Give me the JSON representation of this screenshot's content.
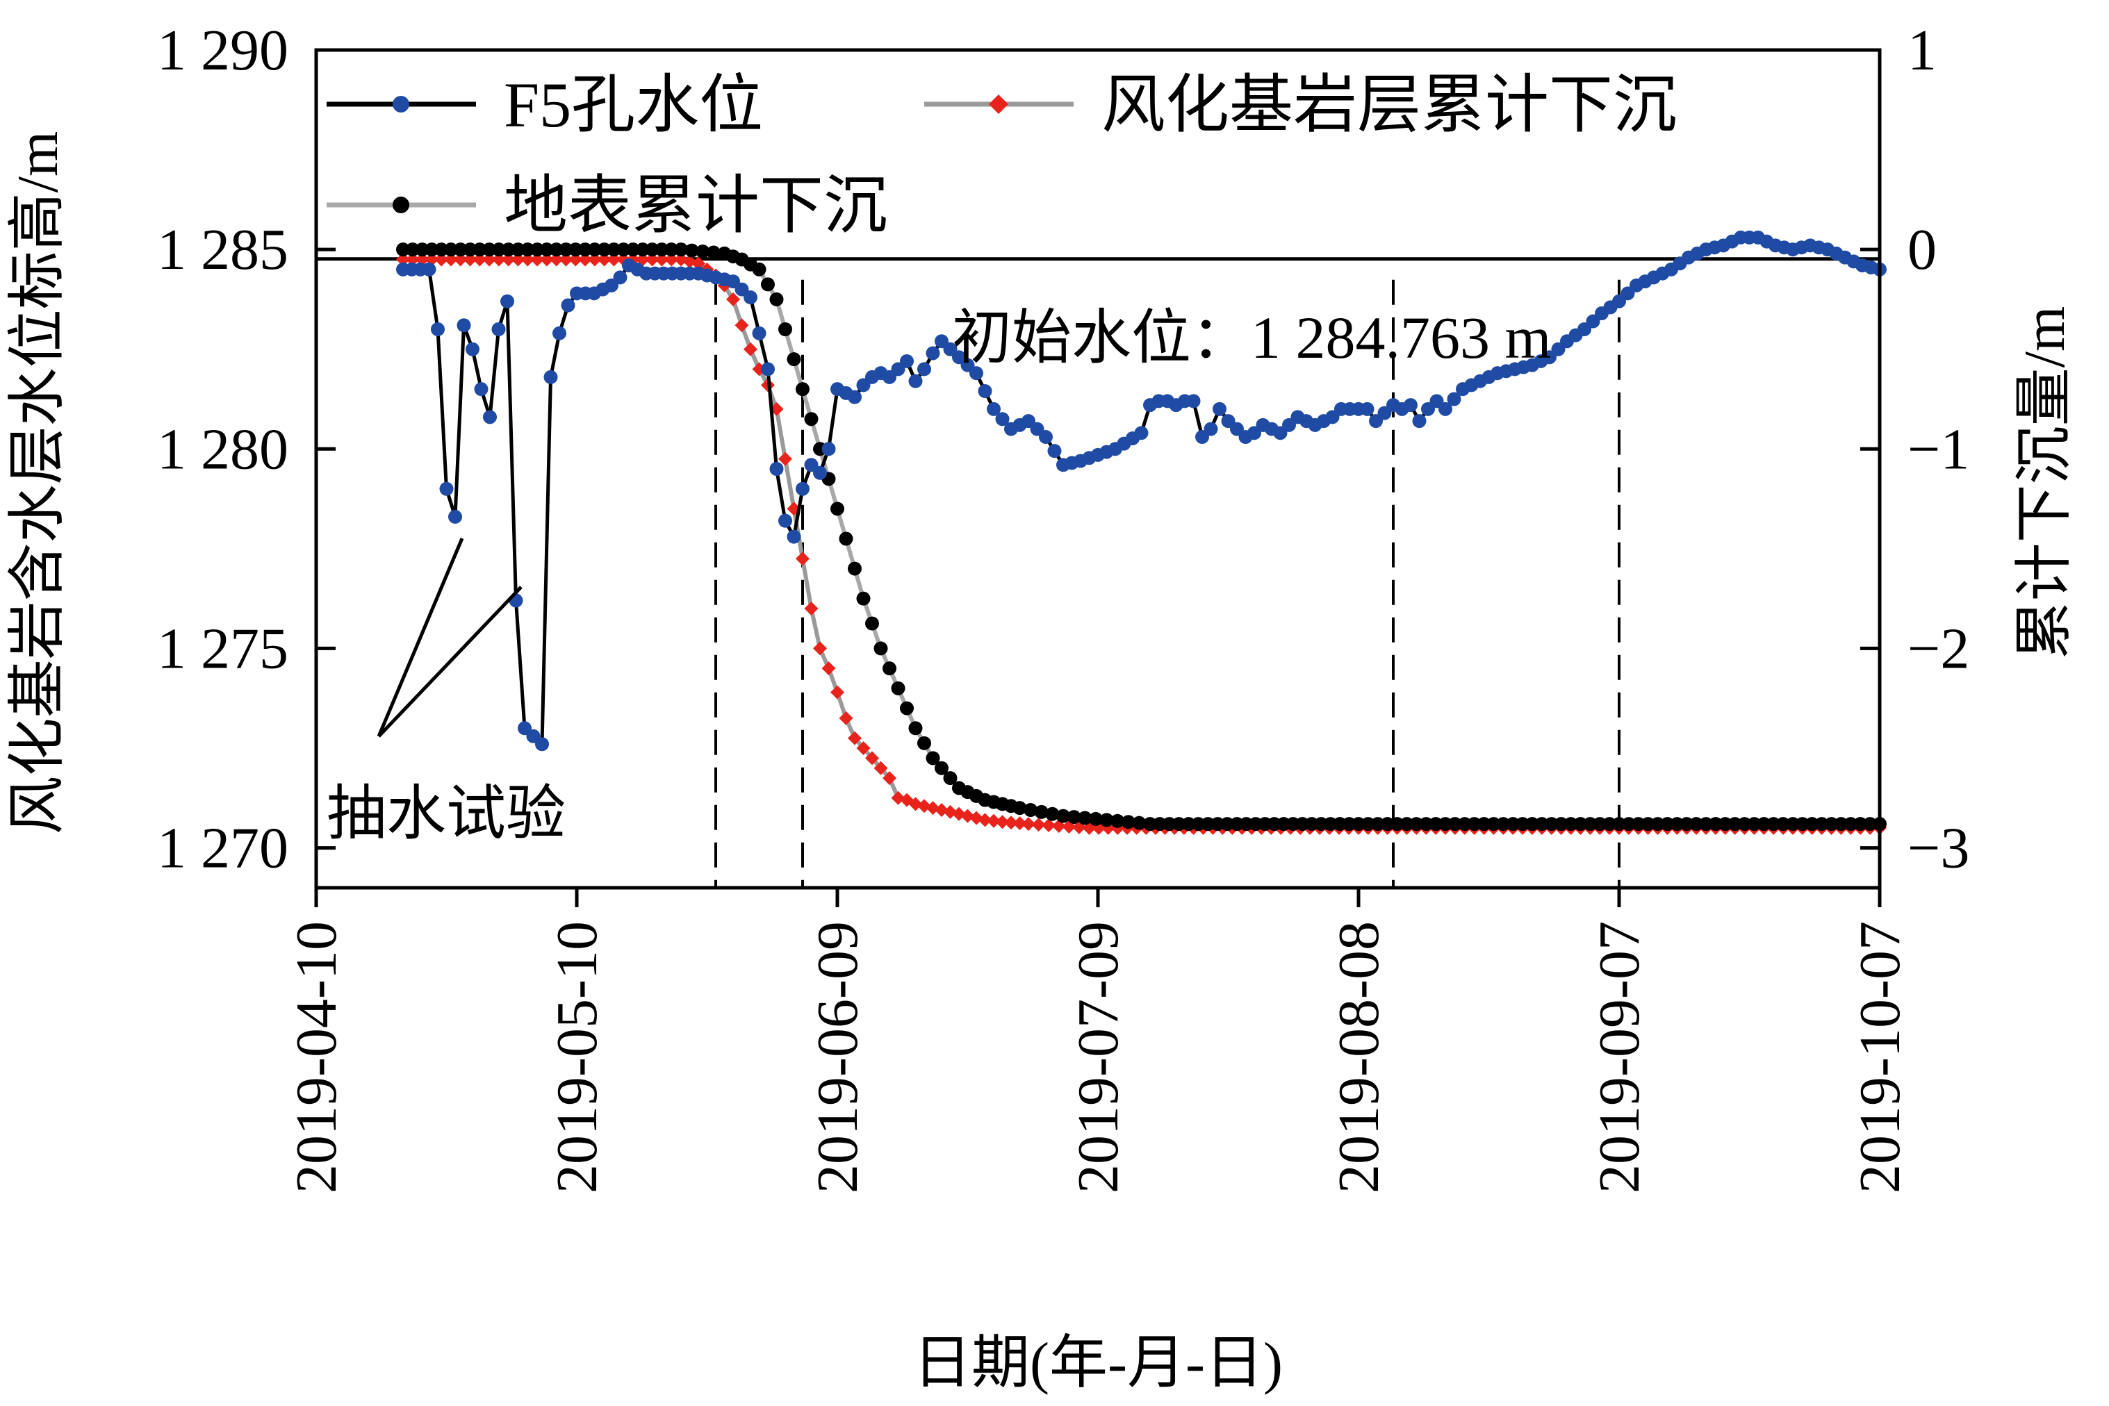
{
  "chart_data": {
    "type": "line",
    "xlabel": "日期(年-月-日)",
    "ylabel_left": "风化基岩含水层水位标高/m",
    "ylabel_right": "累计下沉量/m",
    "x_ticks": [
      "2019-04-10",
      "2019-05-10",
      "2019-06-09",
      "2019-07-09",
      "2019-08-08",
      "2019-09-07",
      "2019-10-07"
    ],
    "xlim": [
      "2019-04-10",
      "2019-10-07"
    ],
    "ylim_left": [
      1269,
      1290
    ],
    "ylim_right": [
      -3.2,
      1
    ],
    "y_ticks_left": [
      "1 270",
      "1 275",
      "1 280",
      "1 285",
      "1 290"
    ],
    "y_ticks_right": [
      "−3",
      "−2",
      "−1",
      "0",
      "1"
    ],
    "legend": [
      {
        "label": "F5孔水位",
        "color": "#000000",
        "marker": "#1f4ba5"
      },
      {
        "label": "风化基岩层累计下沉",
        "color": "#9a9a9a",
        "marker": "#e8231c"
      },
      {
        "label": "地表累计下沉",
        "color": "#a8a8a8",
        "marker": "#000000"
      }
    ],
    "legend_position": "top",
    "annotations": {
      "initial_level": "初始水位：1 284.763 m",
      "initial_level_value": 1284.763,
      "pumping_test": "抽水试验"
    },
    "vlines": [
      "2019-05-26",
      "2019-06-05",
      "2019-08-12",
      "2019-09-07"
    ],
    "series": [
      {
        "name": "F5孔水位",
        "axis": "left",
        "color": "#000000",
        "marker_color": "#1f4ba5",
        "points": [
          [
            "2019-04-20",
            1284.5
          ],
          [
            "2019-04-21",
            1284.5
          ],
          [
            "2019-04-22",
            1284.5
          ],
          [
            "2019-04-23",
            1284.5
          ],
          [
            "2019-04-24",
            1283.0
          ],
          [
            "2019-04-25",
            1279.0
          ],
          [
            "2019-04-26",
            1278.3
          ],
          [
            "2019-04-27",
            1283.1
          ],
          [
            "2019-04-28",
            1282.5
          ],
          [
            "2019-04-29",
            1281.5
          ],
          [
            "2019-04-30",
            1280.8
          ],
          [
            "2019-05-01",
            1283.0
          ],
          [
            "2019-05-02",
            1283.7
          ],
          [
            "2019-05-03",
            1276.2
          ],
          [
            "2019-05-04",
            1273.0
          ],
          [
            "2019-05-05",
            1272.8
          ],
          [
            "2019-05-06",
            1272.6
          ],
          [
            "2019-05-07",
            1281.8
          ],
          [
            "2019-05-08",
            1282.9
          ],
          [
            "2019-05-09",
            1283.6
          ],
          [
            "2019-05-10",
            1283.9
          ],
          [
            "2019-05-12",
            1283.9
          ],
          [
            "2019-05-14",
            1284.1
          ],
          [
            "2019-05-15",
            1284.3
          ],
          [
            "2019-05-16",
            1284.6
          ],
          [
            "2019-05-18",
            1284.4
          ],
          [
            "2019-05-20",
            1284.4
          ],
          [
            "2019-05-22",
            1284.4
          ],
          [
            "2019-05-24",
            1284.4
          ],
          [
            "2019-05-26",
            1284.3
          ],
          [
            "2019-05-28",
            1284.2
          ],
          [
            "2019-05-30",
            1283.8
          ],
          [
            "2019-06-01",
            1282.0
          ],
          [
            "2019-06-02",
            1279.5
          ],
          [
            "2019-06-03",
            1278.2
          ],
          [
            "2019-06-04",
            1277.8
          ],
          [
            "2019-06-05",
            1279.0
          ],
          [
            "2019-06-06",
            1279.6
          ],
          [
            "2019-06-07",
            1279.4
          ],
          [
            "2019-06-08",
            1280.0
          ],
          [
            "2019-06-09",
            1281.5
          ],
          [
            "2019-06-10",
            1281.4
          ],
          [
            "2019-06-11",
            1281.3
          ],
          [
            "2019-06-12",
            1281.6
          ],
          [
            "2019-06-13",
            1281.8
          ],
          [
            "2019-06-14",
            1281.9
          ],
          [
            "2019-06-15",
            1281.8
          ],
          [
            "2019-06-16",
            1282.0
          ],
          [
            "2019-06-17",
            1282.2
          ],
          [
            "2019-06-18",
            1281.7
          ],
          [
            "2019-06-19",
            1282.0
          ],
          [
            "2019-06-20",
            1282.4
          ],
          [
            "2019-06-21",
            1282.7
          ],
          [
            "2019-06-22",
            1282.5
          ],
          [
            "2019-06-25",
            1281.9
          ],
          [
            "2019-06-27",
            1281.0
          ],
          [
            "2019-06-29",
            1280.5
          ],
          [
            "2019-07-01",
            1280.7
          ],
          [
            "2019-07-03",
            1280.3
          ],
          [
            "2019-07-05",
            1279.6
          ],
          [
            "2019-07-07",
            1279.7
          ],
          [
            "2019-07-11",
            1280.0
          ],
          [
            "2019-07-14",
            1280.4
          ],
          [
            "2019-07-15",
            1281.1
          ],
          [
            "2019-07-16",
            1281.2
          ],
          [
            "2019-07-17",
            1281.2
          ],
          [
            "2019-07-18",
            1281.1
          ],
          [
            "2019-07-19",
            1281.2
          ],
          [
            "2019-07-20",
            1281.2
          ],
          [
            "2019-07-21",
            1280.3
          ],
          [
            "2019-07-22",
            1280.5
          ],
          [
            "2019-07-23",
            1281.0
          ],
          [
            "2019-07-24",
            1280.7
          ],
          [
            "2019-07-25",
            1280.5
          ],
          [
            "2019-07-26",
            1280.3
          ],
          [
            "2019-07-27",
            1280.4
          ],
          [
            "2019-07-28",
            1280.6
          ],
          [
            "2019-07-30",
            1280.4
          ],
          [
            "2019-08-01",
            1280.8
          ],
          [
            "2019-08-03",
            1280.6
          ],
          [
            "2019-08-05",
            1280.8
          ],
          [
            "2019-08-06",
            1281.0
          ],
          [
            "2019-08-07",
            1281.0
          ],
          [
            "2019-08-08",
            1281.0
          ],
          [
            "2019-08-09",
            1281.0
          ],
          [
            "2019-08-10",
            1280.7
          ],
          [
            "2019-08-11",
            1280.9
          ],
          [
            "2019-08-12",
            1281.1
          ],
          [
            "2019-08-13",
            1281.0
          ],
          [
            "2019-08-14",
            1281.1
          ],
          [
            "2019-08-15",
            1280.7
          ],
          [
            "2019-08-16",
            1281.0
          ],
          [
            "2019-08-17",
            1281.2
          ],
          [
            "2019-08-18",
            1281.0
          ],
          [
            "2019-08-20",
            1281.5
          ],
          [
            "2019-08-22",
            1281.7
          ],
          [
            "2019-08-24",
            1281.9
          ],
          [
            "2019-08-26",
            1282.0
          ],
          [
            "2019-08-28",
            1282.1
          ],
          [
            "2019-08-30",
            1282.3
          ],
          [
            "2019-09-01",
            1282.7
          ],
          [
            "2019-09-03",
            1283.0
          ],
          [
            "2019-09-05",
            1283.4
          ],
          [
            "2019-09-07",
            1283.7
          ],
          [
            "2019-09-09",
            1284.1
          ],
          [
            "2019-09-11",
            1284.3
          ],
          [
            "2019-09-13",
            1284.5
          ],
          [
            "2019-09-15",
            1284.8
          ],
          [
            "2019-09-17",
            1285.0
          ],
          [
            "2019-09-19",
            1285.1
          ],
          [
            "2019-09-21",
            1285.3
          ],
          [
            "2019-09-23",
            1285.3
          ],
          [
            "2019-09-25",
            1285.1
          ],
          [
            "2019-09-27",
            1285.0
          ],
          [
            "2019-09-29",
            1285.1
          ],
          [
            "2019-10-01",
            1285.0
          ],
          [
            "2019-10-03",
            1284.8
          ],
          [
            "2019-10-05",
            1284.6
          ],
          [
            "2019-10-07",
            1284.5
          ]
        ]
      },
      {
        "name": "风化基岩层累计下沉",
        "axis": "right",
        "color": "#9a9a9a",
        "marker_color": "#e8231c",
        "points": [
          [
            "2019-04-20",
            -0.05
          ],
          [
            "2019-05-22",
            -0.05
          ],
          [
            "2019-05-24",
            -0.07
          ],
          [
            "2019-05-25",
            -0.1
          ],
          [
            "2019-05-26",
            -0.13
          ],
          [
            "2019-05-27",
            -0.18
          ],
          [
            "2019-05-28",
            -0.25
          ],
          [
            "2019-05-29",
            -0.38
          ],
          [
            "2019-05-30",
            -0.5
          ],
          [
            "2019-05-31",
            -0.6
          ],
          [
            "2019-06-01",
            -0.68
          ],
          [
            "2019-06-02",
            -0.8
          ],
          [
            "2019-06-03",
            -1.05
          ],
          [
            "2019-06-04",
            -1.3
          ],
          [
            "2019-06-05",
            -1.55
          ],
          [
            "2019-06-06",
            -1.8
          ],
          [
            "2019-06-07",
            -2.0
          ],
          [
            "2019-06-08",
            -2.1
          ],
          [
            "2019-06-09",
            -2.22
          ],
          [
            "2019-06-10",
            -2.35
          ],
          [
            "2019-06-11",
            -2.45
          ],
          [
            "2019-06-12",
            -2.5
          ],
          [
            "2019-06-13",
            -2.55
          ],
          [
            "2019-06-14",
            -2.6
          ],
          [
            "2019-06-15",
            -2.65
          ],
          [
            "2019-06-16",
            -2.75
          ],
          [
            "2019-06-17",
            -2.76
          ],
          [
            "2019-06-18",
            -2.78
          ],
          [
            "2019-06-19",
            -2.79
          ],
          [
            "2019-06-20",
            -2.8
          ],
          [
            "2019-06-22",
            -2.82
          ],
          [
            "2019-06-24",
            -2.84
          ],
          [
            "2019-06-26",
            -2.86
          ],
          [
            "2019-06-28",
            -2.87
          ],
          [
            "2019-07-01",
            -2.88
          ],
          [
            "2019-07-08",
            -2.9
          ],
          [
            "2019-07-20",
            -2.9
          ],
          [
            "2019-08-08",
            -2.9
          ],
          [
            "2019-09-07",
            -2.9
          ],
          [
            "2019-10-07",
            -2.9
          ]
        ]
      },
      {
        "name": "地表累计下沉",
        "axis": "right",
        "color": "#a8a8a8",
        "marker_color": "#000000",
        "points": [
          [
            "2019-04-20",
            0.0
          ],
          [
            "2019-05-22",
            0.0
          ],
          [
            "2019-05-27",
            -0.02
          ],
          [
            "2019-05-29",
            -0.05
          ],
          [
            "2019-05-31",
            -0.1
          ],
          [
            "2019-06-02",
            -0.25
          ],
          [
            "2019-06-04",
            -0.55
          ],
          [
            "2019-06-06",
            -0.85
          ],
          [
            "2019-06-08",
            -1.15
          ],
          [
            "2019-06-10",
            -1.45
          ],
          [
            "2019-06-12",
            -1.75
          ],
          [
            "2019-06-14",
            -2.0
          ],
          [
            "2019-06-16",
            -2.2
          ],
          [
            "2019-06-18",
            -2.4
          ],
          [
            "2019-06-20",
            -2.55
          ],
          [
            "2019-06-23",
            -2.7
          ],
          [
            "2019-06-26",
            -2.76
          ],
          [
            "2019-06-30",
            -2.8
          ],
          [
            "2019-07-05",
            -2.84
          ],
          [
            "2019-07-10",
            -2.86
          ],
          [
            "2019-07-15",
            -2.88
          ],
          [
            "2019-07-25",
            -2.88
          ],
          [
            "2019-08-08",
            -2.88
          ],
          [
            "2019-09-07",
            -2.88
          ],
          [
            "2019-10-07",
            -2.88
          ]
        ]
      }
    ]
  }
}
